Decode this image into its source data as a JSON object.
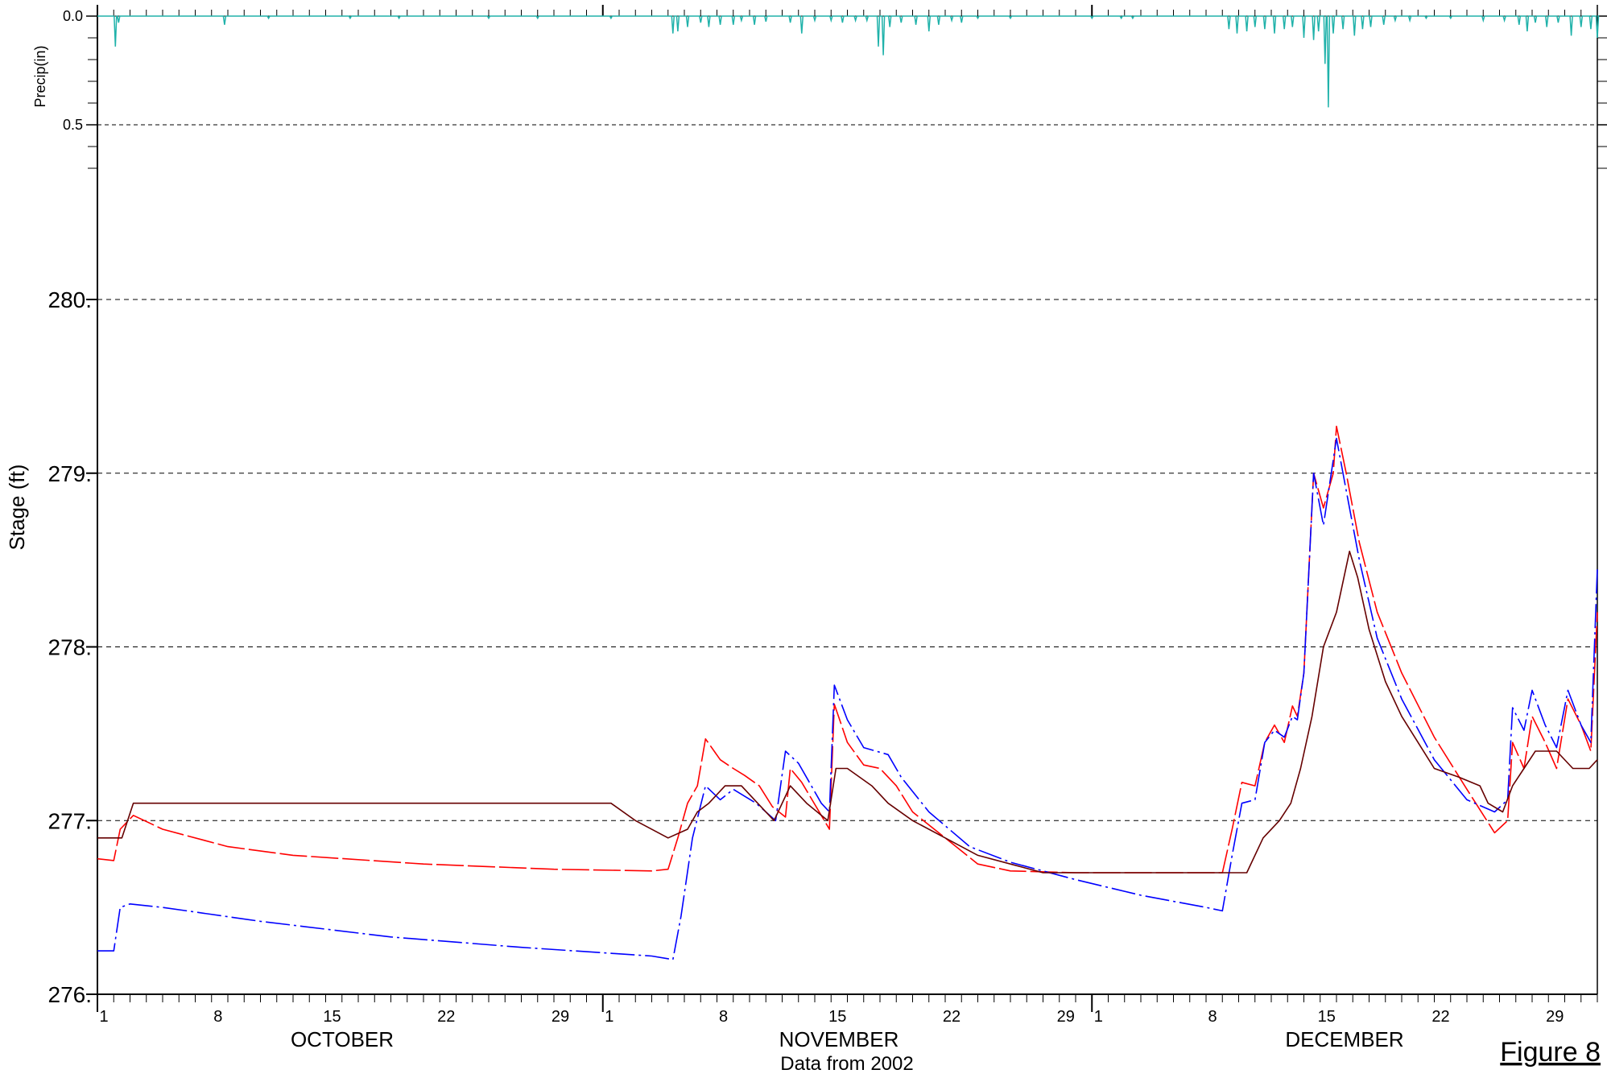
{
  "chart_data": {
    "type": "line",
    "figure_label": "Figure 8",
    "footer": "Data from 2002",
    "x_axis": {
      "months": [
        {
          "name": "OCTOBER",
          "ticks": [
            "1",
            "8",
            "15",
            "22",
            "29"
          ]
        },
        {
          "name": "NOVEMBER",
          "ticks": [
            "1",
            "8",
            "15",
            "22",
            "29"
          ]
        },
        {
          "name": "DECEMBER",
          "ticks": [
            "1",
            "8",
            "15",
            "22",
            "29"
          ]
        }
      ],
      "range_days": [
        0,
        92
      ]
    },
    "precip_panel": {
      "ylabel": "Precip(in)",
      "ylim": [
        0.0,
        0.75
      ],
      "inverted": true,
      "tick_labels": [
        "0.0",
        "0.5"
      ],
      "color": "#20b2aa",
      "events": [
        [
          1.1,
          0.28
        ],
        [
          1.3,
          0.06
        ],
        [
          7.8,
          0.08
        ],
        [
          10.5,
          0.02
        ],
        [
          15.5,
          0.02
        ],
        [
          18.5,
          0.02
        ],
        [
          24,
          0.02
        ],
        [
          27,
          0.02
        ],
        [
          31.5,
          0.02
        ],
        [
          35.3,
          0.16
        ],
        [
          35.6,
          0.14
        ],
        [
          36.2,
          0.1
        ],
        [
          37,
          0.06
        ],
        [
          37.5,
          0.1
        ],
        [
          38.2,
          0.08
        ],
        [
          39,
          0.08
        ],
        [
          39.5,
          0.04
        ],
        [
          40.3,
          0.08
        ],
        [
          41,
          0.05
        ],
        [
          42.5,
          0.06
        ],
        [
          43.2,
          0.16
        ],
        [
          44,
          0.04
        ],
        [
          45,
          0.04
        ],
        [
          45.7,
          0.06
        ],
        [
          46.5,
          0.04
        ],
        [
          47.2,
          0.04
        ],
        [
          47.9,
          0.28
        ],
        [
          48.2,
          0.36
        ],
        [
          48.6,
          0.1
        ],
        [
          49.3,
          0.06
        ],
        [
          50.2,
          0.08
        ],
        [
          51,
          0.14
        ],
        [
          51.6,
          0.08
        ],
        [
          52.4,
          0.04
        ],
        [
          53,
          0.06
        ],
        [
          54,
          0.02
        ],
        [
          56,
          0.02
        ],
        [
          61,
          0.02
        ],
        [
          62.8,
          0.02
        ],
        [
          63.5,
          0.02
        ],
        [
          69.4,
          0.12
        ],
        [
          69.9,
          0.16
        ],
        [
          70.5,
          0.14
        ],
        [
          71,
          0.1
        ],
        [
          71.6,
          0.12
        ],
        [
          72.2,
          0.16
        ],
        [
          72.8,
          0.12
        ],
        [
          73.3,
          0.1
        ],
        [
          74,
          0.2
        ],
        [
          74.6,
          0.22
        ],
        [
          74.9,
          0.14
        ],
        [
          75.3,
          0.44
        ],
        [
          75.5,
          0.84
        ],
        [
          75.8,
          0.16
        ],
        [
          76.4,
          0.12
        ],
        [
          77.1,
          0.18
        ],
        [
          77.6,
          0.12
        ],
        [
          78.1,
          0.1
        ],
        [
          78.9,
          0.08
        ],
        [
          79.6,
          0.04
        ],
        [
          80.5,
          0.04
        ],
        [
          81.5,
          0.02
        ],
        [
          83,
          0.02
        ],
        [
          85,
          0.04
        ],
        [
          86.3,
          0.04
        ],
        [
          87.2,
          0.08
        ],
        [
          87.7,
          0.14
        ],
        [
          88.2,
          0.06
        ],
        [
          88.9,
          0.1
        ],
        [
          89.6,
          0.06
        ],
        [
          90.4,
          0.18
        ],
        [
          91,
          0.1
        ],
        [
          91.6,
          0.12
        ],
        [
          92,
          0.2
        ]
      ]
    },
    "stage_panel": {
      "ylabel": "Stage (ft)",
      "ylim": [
        276.0,
        280.0
      ],
      "tick_labels": [
        "276.",
        "277.",
        "278.",
        "279.",
        "280."
      ],
      "grid": "dashed",
      "series": [
        {
          "color": "#ff0000",
          "dash": "long-dash",
          "points": [
            [
              0,
              276.78
            ],
            [
              1,
              276.77
            ],
            [
              1.4,
              276.95
            ],
            [
              2.2,
              277.03
            ],
            [
              4,
              276.95
            ],
            [
              8,
              276.85
            ],
            [
              12,
              276.8
            ],
            [
              20,
              276.75
            ],
            [
              28,
              276.72
            ],
            [
              34,
              276.71
            ],
            [
              35,
              276.72
            ],
            [
              35.6,
              276.9
            ],
            [
              36.2,
              277.1
            ],
            [
              36.8,
              277.2
            ],
            [
              37.3,
              277.47
            ],
            [
              38.2,
              277.35
            ],
            [
              39,
              277.3
            ],
            [
              39.7,
              277.26
            ],
            [
              40.6,
              277.2
            ],
            [
              41.4,
              277.08
            ],
            [
              42.2,
              277.02
            ],
            [
              42.5,
              277.3
            ],
            [
              43.2,
              277.22
            ],
            [
              44.4,
              277.03
            ],
            [
              44.9,
              276.95
            ],
            [
              45.2,
              277.67
            ],
            [
              46,
              277.45
            ],
            [
              47,
              277.32
            ],
            [
              48,
              277.3
            ],
            [
              49,
              277.2
            ],
            [
              50,
              277.05
            ],
            [
              52,
              276.9
            ],
            [
              54,
              276.75
            ],
            [
              56,
              276.71
            ],
            [
              60,
              276.7
            ],
            [
              64,
              276.7
            ],
            [
              69,
              276.7
            ],
            [
              69.6,
              276.95
            ],
            [
              70.2,
              277.22
            ],
            [
              71,
              277.2
            ],
            [
              71.6,
              277.45
            ],
            [
              72.2,
              277.55
            ],
            [
              72.8,
              277.45
            ],
            [
              73.3,
              277.66
            ],
            [
              73.6,
              277.6
            ],
            [
              74,
              277.85
            ],
            [
              74.6,
              279.0
            ],
            [
              75.2,
              278.8
            ],
            [
              75.8,
              279.0
            ],
            [
              76,
              279.27
            ],
            [
              76.6,
              279.0
            ],
            [
              77.4,
              278.6
            ],
            [
              78.5,
              278.2
            ],
            [
              80,
              277.85
            ],
            [
              82,
              277.48
            ],
            [
              84,
              277.18
            ],
            [
              85.7,
              276.93
            ],
            [
              86.5,
              277.0
            ],
            [
              86.8,
              277.45
            ],
            [
              87.5,
              277.3
            ],
            [
              88,
              277.6
            ],
            [
              88.8,
              277.45
            ],
            [
              89.5,
              277.3
            ],
            [
              90.2,
              277.7
            ],
            [
              91,
              277.55
            ],
            [
              91.6,
              277.4
            ],
            [
              92,
              278.2
            ]
          ]
        },
        {
          "color": "#0000ff",
          "dash": "dash-dot",
          "points": [
            [
              0,
              276.25
            ],
            [
              1,
              276.25
            ],
            [
              1.4,
              276.5
            ],
            [
              2,
              276.52
            ],
            [
              4,
              276.5
            ],
            [
              10,
              276.42
            ],
            [
              18,
              276.33
            ],
            [
              26,
              276.27
            ],
            [
              34,
              276.22
            ],
            [
              35.3,
              276.2
            ],
            [
              35.8,
              276.45
            ],
            [
              36.5,
              276.9
            ],
            [
              37.3,
              277.2
            ],
            [
              38.2,
              277.12
            ],
            [
              39,
              277.18
            ],
            [
              40.4,
              277.1
            ],
            [
              41.6,
              277.0
            ],
            [
              42.2,
              277.4
            ],
            [
              43,
              277.33
            ],
            [
              44.4,
              277.1
            ],
            [
              44.9,
              277.05
            ],
            [
              45.2,
              277.78
            ],
            [
              46,
              277.58
            ],
            [
              47,
              277.42
            ],
            [
              48.5,
              277.38
            ],
            [
              49.3,
              277.25
            ],
            [
              51,
              277.05
            ],
            [
              53.5,
              276.85
            ],
            [
              56,
              276.76
            ],
            [
              60,
              276.66
            ],
            [
              64,
              276.57
            ],
            [
              68,
              276.5
            ],
            [
              69,
              276.48
            ],
            [
              69.6,
              276.8
            ],
            [
              70.2,
              277.1
            ],
            [
              71,
              277.12
            ],
            [
              71.6,
              277.45
            ],
            [
              72.2,
              277.52
            ],
            [
              72.8,
              277.48
            ],
            [
              73.3,
              277.6
            ],
            [
              73.6,
              277.58
            ],
            [
              74,
              277.85
            ],
            [
              74.6,
              279.0
            ],
            [
              75.2,
              278.7
            ],
            [
              76,
              279.2
            ],
            [
              76.6,
              278.9
            ],
            [
              77.4,
              278.5
            ],
            [
              78.5,
              278.05
            ],
            [
              80,
              277.7
            ],
            [
              82,
              277.35
            ],
            [
              84,
              277.12
            ],
            [
              85.7,
              277.05
            ],
            [
              86.5,
              277.12
            ],
            [
              86.8,
              277.65
            ],
            [
              87.5,
              277.52
            ],
            [
              88,
              277.75
            ],
            [
              88.8,
              277.55
            ],
            [
              89.5,
              277.42
            ],
            [
              90.2,
              277.75
            ],
            [
              91,
              277.55
            ],
            [
              91.6,
              277.45
            ],
            [
              92,
              278.45
            ]
          ]
        },
        {
          "color": "#660000",
          "dash": "solid",
          "points": [
            [
              0,
              276.9
            ],
            [
              1,
              276.9
            ],
            [
              1.5,
              276.9
            ],
            [
              2.2,
              277.1
            ],
            [
              5,
              277.1
            ],
            [
              10,
              277.1
            ],
            [
              20,
              277.1
            ],
            [
              26,
              277.1
            ],
            [
              30.5,
              277.1
            ],
            [
              31.5,
              277.1
            ],
            [
              33,
              277.0
            ],
            [
              35,
              276.9
            ],
            [
              36.2,
              276.95
            ],
            [
              36.8,
              277.05
            ],
            [
              37.5,
              277.1
            ],
            [
              38.5,
              277.2
            ],
            [
              39.5,
              277.2
            ],
            [
              40.5,
              277.1
            ],
            [
              41.5,
              277.0
            ],
            [
              42.5,
              277.2
            ],
            [
              43.5,
              277.1
            ],
            [
              44.8,
              277.0
            ],
            [
              45.3,
              277.3
            ],
            [
              46,
              277.3
            ],
            [
              47.5,
              277.2
            ],
            [
              48.5,
              277.1
            ],
            [
              50,
              277.0
            ],
            [
              52,
              276.9
            ],
            [
              54,
              276.8
            ],
            [
              56,
              276.75
            ],
            [
              58,
              276.7
            ],
            [
              64,
              276.7
            ],
            [
              69,
              276.7
            ],
            [
              70.5,
              276.7
            ],
            [
              71.5,
              276.9
            ],
            [
              72.5,
              277.0
            ],
            [
              73.2,
              277.1
            ],
            [
              73.8,
              277.3
            ],
            [
              74.5,
              277.6
            ],
            [
              75.2,
              278.0
            ],
            [
              76,
              278.2
            ],
            [
              76.8,
              278.55
            ],
            [
              77.3,
              278.4
            ],
            [
              78,
              278.1
            ],
            [
              79,
              277.8
            ],
            [
              80,
              277.6
            ],
            [
              81,
              277.45
            ],
            [
              82,
              277.3
            ],
            [
              83.5,
              277.25
            ],
            [
              84.8,
              277.2
            ],
            [
              85.3,
              277.1
            ],
            [
              86.2,
              277.05
            ],
            [
              86.8,
              277.2
            ],
            [
              87.5,
              277.3
            ],
            [
              88.2,
              277.4
            ],
            [
              89.5,
              277.4
            ],
            [
              90.5,
              277.3
            ],
            [
              91.5,
              277.3
            ],
            [
              92,
              277.35
            ]
          ]
        }
      ]
    }
  }
}
